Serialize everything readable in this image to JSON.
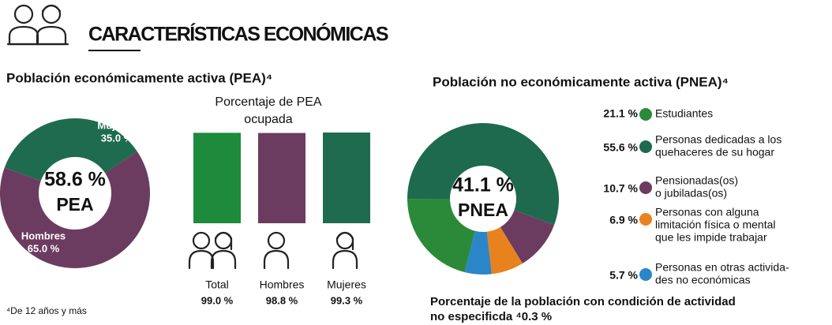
{
  "header": {
    "title": "CARACTERÍSTICAS ECONÓMICAS"
  },
  "footnote": "⁴De 12 años y más",
  "bottom_note": [
    "Porcentaje de la población con condición de actividad",
    "no especificda ⁴0.3 %"
  ],
  "chart_data": [
    {
      "type": "donut",
      "title": "Población económicamente activa (PEA)⁴",
      "categories": [
        "Mujeres",
        "Hombres"
      ],
      "values": [
        35.0,
        65.0
      ],
      "value_labels": [
        "35.0 %",
        "65.0 %"
      ],
      "colors": [
        "#1f6b4f",
        "#6c3c60"
      ],
      "center_label": [
        "58.6 %",
        "PEA"
      ]
    },
    {
      "type": "bar",
      "title": [
        "Porcentaje de PEA",
        "ocupada"
      ],
      "categories": [
        "Total",
        "Hombres",
        "Mujeres"
      ],
      "values": [
        99.0,
        98.8,
        99.3
      ],
      "value_labels": [
        "99.0 %",
        "98.8 %",
        "99.3 %"
      ],
      "colors": [
        "#1e8a3c",
        "#6c3c60",
        "#1f6b4f"
      ]
    },
    {
      "type": "donut",
      "title": "Población no económicamente activa (PNEA)⁴",
      "categories": [
        [
          "Estudiantes"
        ],
        [
          "Personas dedicadas a los",
          "quehaceres de su hogar"
        ],
        [
          "Pensionadas(os)",
          "o jubiladas(os)"
        ],
        [
          "Personas con alguna",
          "limitación física o mental",
          "que les impide trabajar"
        ],
        [
          "Personas en otras activida-",
          "des no económicas"
        ]
      ],
      "values": [
        21.1,
        55.6,
        10.7,
        6.9,
        5.7
      ],
      "value_labels": [
        "21.1 %",
        "55.6 %",
        "10.7 %",
        "6.9 %",
        "5.7 %"
      ],
      "colors": [
        "#2a8a3a",
        "#1d6a4f",
        "#6c3c60",
        "#e8821e",
        "#2a86c8"
      ],
      "center_label": [
        "41.1 %",
        "PNEA"
      ]
    }
  ]
}
